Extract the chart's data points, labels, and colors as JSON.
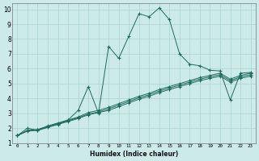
{
  "xlabel": "Humidex (Indice chaleur)",
  "bg_color": "#cceae7",
  "grid_color": "#aad4d0",
  "line_color": "#1e6b5e",
  "xlim": [
    -0.5,
    23.5
  ],
  "ylim": [
    1,
    10.4
  ],
  "xtick_labels": [
    "0",
    "1",
    "2",
    "3",
    "4",
    "5",
    "6",
    "7",
    "8",
    "9",
    "10",
    "11",
    "12",
    "13",
    "14",
    "15",
    "16",
    "17",
    "18",
    "19",
    "20",
    "21",
    "22",
    "23"
  ],
  "yticks": [
    1,
    2,
    3,
    4,
    5,
    6,
    7,
    8,
    9,
    10
  ],
  "series": [
    {
      "x": [
        0,
        1,
        2,
        3,
        4,
        5,
        6,
        7,
        8,
        9,
        10,
        11,
        12,
        13,
        14,
        15,
        16,
        17,
        18,
        19,
        20,
        21,
        22,
        23
      ],
      "y": [
        1.5,
        2.0,
        1.85,
        2.1,
        2.3,
        2.55,
        3.2,
        4.8,
        3.0,
        7.5,
        6.7,
        8.2,
        9.7,
        9.5,
        10.1,
        9.3,
        7.0,
        6.3,
        6.2,
        5.9,
        5.85,
        3.9,
        5.7,
        5.75
      ]
    },
    {
      "x": [
        0,
        1,
        2,
        3,
        4,
        5,
        6,
        7,
        8,
        9,
        10,
        11,
        12,
        13,
        14,
        15,
        16,
        17,
        18,
        19,
        20,
        21,
        22,
        23
      ],
      "y": [
        1.5,
        1.85,
        1.9,
        2.15,
        2.35,
        2.55,
        2.75,
        3.05,
        3.2,
        3.4,
        3.65,
        3.9,
        4.15,
        4.35,
        4.6,
        4.8,
        5.0,
        5.2,
        5.4,
        5.55,
        5.7,
        5.3,
        5.55,
        5.7
      ]
    },
    {
      "x": [
        0,
        1,
        2,
        3,
        4,
        5,
        6,
        7,
        8,
        9,
        10,
        11,
        12,
        13,
        14,
        15,
        16,
        17,
        18,
        19,
        20,
        21,
        22,
        23
      ],
      "y": [
        1.5,
        1.85,
        1.9,
        2.1,
        2.3,
        2.5,
        2.7,
        2.95,
        3.1,
        3.3,
        3.55,
        3.8,
        4.05,
        4.25,
        4.5,
        4.7,
        4.9,
        5.1,
        5.3,
        5.45,
        5.6,
        5.2,
        5.45,
        5.6
      ]
    },
    {
      "x": [
        0,
        1,
        2,
        3,
        4,
        5,
        6,
        7,
        8,
        9,
        10,
        11,
        12,
        13,
        14,
        15,
        16,
        17,
        18,
        19,
        20,
        21,
        22,
        23
      ],
      "y": [
        1.5,
        1.8,
        1.85,
        2.05,
        2.25,
        2.45,
        2.65,
        2.9,
        3.05,
        3.2,
        3.45,
        3.7,
        3.95,
        4.15,
        4.4,
        4.6,
        4.8,
        5.0,
        5.2,
        5.35,
        5.5,
        5.1,
        5.35,
        5.5
      ]
    }
  ]
}
